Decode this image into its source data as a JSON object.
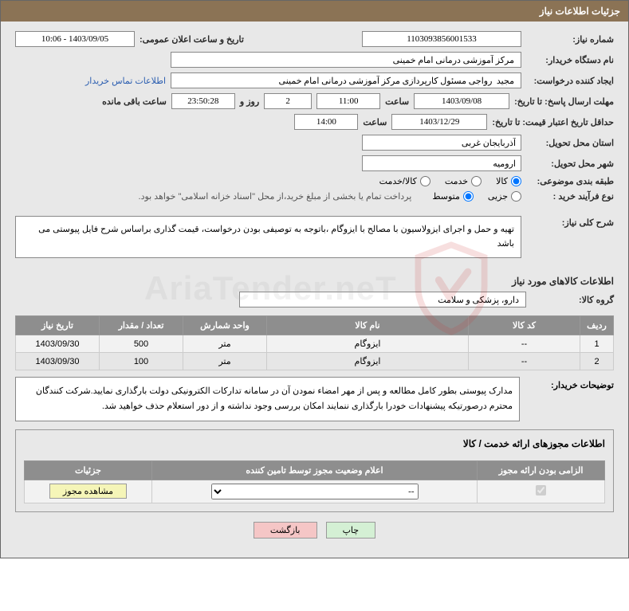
{
  "header": {
    "title": "جزئیات اطلاعات نیاز"
  },
  "need": {
    "number_label": "شماره نیاز:",
    "number": "1103093856001533",
    "announce_label": "تاریخ و ساعت اعلان عمومی:",
    "announce_value": "1403/09/05 - 10:06",
    "buyer_org_label": "نام دستگاه خریدار:",
    "buyer_org": "مرکز آموزشی درمانی امام خمینی",
    "requester_label": "ایجاد کننده درخواست:",
    "requester": "مجید  رواجی مسئول کارپردازی مرکز آموزشی درمانی امام خمینی",
    "contact_link": "اطلاعات تماس خریدار",
    "deadline_send_label": "مهلت ارسال پاسخ: تا تاریخ:",
    "deadline_send_date": "1403/09/08",
    "time_label": "ساعت",
    "deadline_send_time": "11:00",
    "days_count": "2",
    "days_text": "روز و",
    "countdown": "23:50:28",
    "remain_text": "ساعت باقی مانده",
    "validity_label": "حداقل تاریخ اعتبار قیمت: تا تاریخ:",
    "validity_date": "1403/12/29",
    "validity_time": "14:00",
    "province_label": "استان محل تحویل:",
    "province": "آذربایجان غربی",
    "city_label": "شهر محل تحویل:",
    "city": "ارومیه",
    "category_label": "طبقه بندی موضوعی:",
    "cat_goods": "کالا",
    "cat_service": "خدمت",
    "cat_both": "کالا/خدمت",
    "process_label": "نوع فرآیند خرید :",
    "proc_small": "جزیی",
    "proc_medium": "متوسط",
    "finance_note": "پرداخت تمام یا بخشی از مبلغ خرید،از محل \"اسناد خزانه اسلامی\" خواهد بود.",
    "desc_label": "شرح کلی نیاز:",
    "desc_text": "تهیه و حمل و اجرای ایزولاسیون با مصالح با ایزوگام ،باتوجه به توصیفی بودن درخواست، قیمت گذاری براساس شرح فایل پیوستی می باشد"
  },
  "goods_section": {
    "title": "اطلاعات کالاهای مورد نیاز",
    "group_label": "گروه کالا:",
    "group_value": "دارو، پزشکی و سلامت",
    "columns": {
      "row": "ردیف",
      "code": "کد کالا",
      "name": "نام کالا",
      "unit": "واحد شمارش",
      "qty": "تعداد / مقدار",
      "date": "تاریخ نیاز"
    },
    "rows": [
      {
        "idx": "1",
        "code": "--",
        "name": "ایزوگام",
        "unit": "متر",
        "qty": "500",
        "date": "1403/09/30"
      },
      {
        "idx": "2",
        "code": "--",
        "name": "ایزوگام",
        "unit": "متر",
        "qty": "100",
        "date": "1403/09/30"
      }
    ],
    "buyer_note_label": "توضیحات خریدار:",
    "buyer_note": "مدارک پیوستی بطور کامل مطالعه و پس از مهر امضاء نمودن  آن در سامانه تدارکات الکترونیکی دولت بارگذاری نمایید.شرکت کنندگان محترم درصورتیکه پیشنهادات خودرا بارگذاری ننمایند امکان بررسی وجود نداشته و از دور استعلام حذف خواهید شد."
  },
  "license_section": {
    "title": "اطلاعات مجوزهای ارائه خدمت / کالا",
    "columns": {
      "mandatory": "الزامی بودن ارائه مجوز",
      "status": "اعلام وضعیت مجوز توسط تامین کننده",
      "details": "جزئیات"
    },
    "status_placeholder": "--",
    "view_btn": "مشاهده مجوز"
  },
  "actions": {
    "print": "چاپ",
    "back": "بازگشت"
  },
  "colors": {
    "header_bg": "#8b7355",
    "page_bg": "#e8e8e8",
    "th_bg": "#8e8e8e",
    "btn_yellow": "#f5f5b8",
    "btn_green": "#d4f0d4",
    "btn_pink": "#f5c6c6",
    "link": "#2a5db0"
  }
}
